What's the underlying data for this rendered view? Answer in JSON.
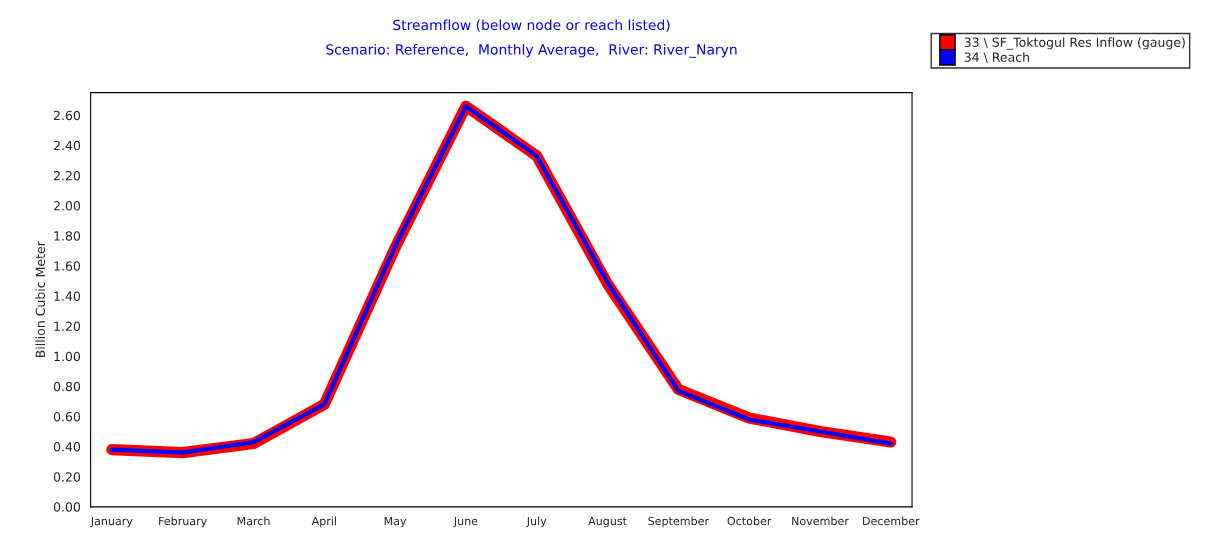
{
  "chart_data": {
    "type": "line",
    "title": "Streamflow (below node or reach listed)",
    "subtitle": "Scenario: Reference,  Monthly Average,  River: River_Naryn",
    "ylabel": "Billion Cubic Meter",
    "categories": [
      "January",
      "February",
      "March",
      "April",
      "May",
      "June",
      "July",
      "August",
      "September",
      "October",
      "November",
      "December"
    ],
    "series": [
      {
        "name": "33 \\ SF_Toktogul Res Inflow (gauge)",
        "color": "#ff0000",
        "values": [
          0.38,
          0.36,
          0.42,
          0.68,
          1.72,
          2.66,
          2.33,
          1.48,
          0.78,
          0.59,
          0.5,
          0.43
        ]
      },
      {
        "name": "34 \\ Reach",
        "color": "#0000ff",
        "values": [
          0.38,
          0.36,
          0.43,
          0.68,
          1.73,
          2.66,
          2.33,
          1.49,
          0.77,
          0.58,
          0.5,
          0.42
        ]
      }
    ],
    "ylim": [
      0,
      2.75
    ],
    "yticks": [
      {
        "value": 0,
        "label": "0.00"
      },
      {
        "value": 0.2,
        "label": "0.20"
      },
      {
        "value": 0.4,
        "label": "0.40"
      },
      {
        "value": 0.6,
        "label": "0.60"
      },
      {
        "value": 0.8,
        "label": "0.80"
      },
      {
        "value": 1.0,
        "label": "1.00"
      },
      {
        "value": 1.2,
        "label": "1.20"
      },
      {
        "value": 1.4,
        "label": "1.40"
      },
      {
        "value": 1.6,
        "label": "1.60"
      },
      {
        "value": 1.8,
        "label": "1.80"
      },
      {
        "value": 2.0,
        "label": "2.00"
      },
      {
        "value": 2.2,
        "label": "2.20"
      },
      {
        "value": 2.4,
        "label": "2.40"
      },
      {
        "value": 2.6,
        "label": "2.60"
      }
    ],
    "grid": false,
    "legend": "top right",
    "marker": "none",
    "line_style": "solid"
  }
}
